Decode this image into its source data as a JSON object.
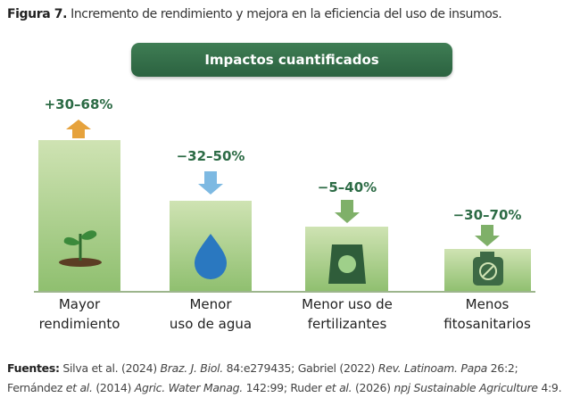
{
  "caption": {
    "label": "Figura 7.",
    "text": " Incremento de rendimiento y mejora en la eficiencia del uso de insumos."
  },
  "banner": "Impactos cuantificados",
  "items": [
    {
      "range": "+30–68%",
      "lines": [
        "Mayor",
        "rendimiento"
      ]
    },
    {
      "range": "−32–50%",
      "lines": [
        "Menor",
        "uso de agua"
      ]
    },
    {
      "range": "−5–40%",
      "lines": [
        "Menor uso de",
        "fertilizantes"
      ]
    },
    {
      "range": "−30–70%",
      "lines": [
        "Menos",
        "fitosanitarios"
      ]
    }
  ],
  "sources": {
    "label": "Fuentes:",
    "line1": [
      "Silva et al. (2024) ",
      "Braz. J. Biol.",
      " 84:e279435; Gabriel (2022) ",
      "Rev. Latinoam. Papa",
      " 26:2;"
    ],
    "line2": [
      "Fernández ",
      "et al.",
      " (2014) ",
      "Agric. Water Manag.",
      " 142:99; Ruder ",
      "et al.",
      " (2026) ",
      "npj Sustainable Agriculture",
      " 4:9."
    ]
  }
}
